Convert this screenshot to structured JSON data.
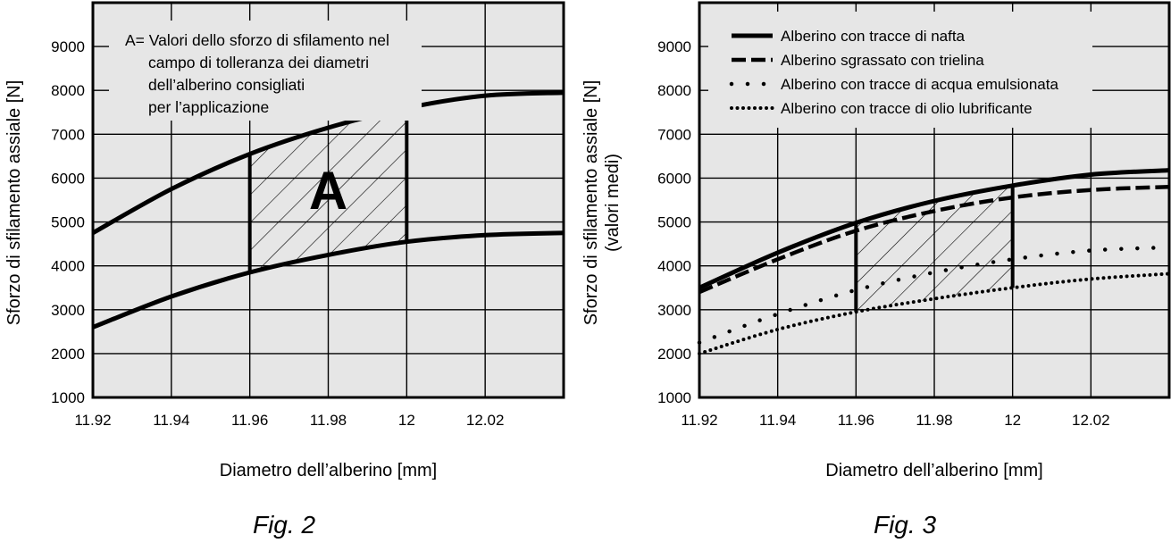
{
  "chart_data": [
    {
      "type": "line",
      "figure_label": "Fig. 2",
      "xlabel": "Diametro dell’alberino [mm]",
      "ylabel": "Sforzo di sfilamento assiale [N]",
      "xlim": [
        11.92,
        12.04
      ],
      "ylim": [
        1000,
        10000
      ],
      "x_ticks": [
        11.92,
        11.94,
        11.96,
        11.98,
        12,
        12.02
      ],
      "x_tick_labels": [
        "11.92",
        "11.94",
        "11.96",
        "11.98",
        "12",
        "12.02"
      ],
      "y_ticks": [
        1000,
        2000,
        3000,
        4000,
        5000,
        6000,
        7000,
        8000,
        9000
      ],
      "y_tick_labels": [
        "1000",
        "2000",
        "3000",
        "4000",
        "5000",
        "6000",
        "7000",
        "8000",
        "9000"
      ],
      "grid": true,
      "series": [
        {
          "key": "upper",
          "style": "solid",
          "x": [
            11.92,
            11.94,
            11.96,
            11.98,
            12.0,
            12.02,
            12.04
          ],
          "y": [
            4750,
            5750,
            6550,
            7150,
            7600,
            7880,
            7950
          ]
        },
        {
          "key": "lower",
          "style": "solid",
          "x": [
            11.92,
            11.94,
            11.96,
            11.98,
            12.0,
            12.02,
            12.04
          ],
          "y": [
            2600,
            3300,
            3850,
            4250,
            4550,
            4700,
            4750
          ]
        }
      ],
      "region": {
        "label": "A",
        "x_from": 11.96,
        "x_to": 12.0,
        "between": [
          "upper",
          "lower"
        ]
      },
      "annotation": [
        "A= Valori dello sforzo di sfilamento nel",
        "campo di tolleranza dei diametri",
        "dell’alberino consigliati",
        "per l’applicazione"
      ]
    },
    {
      "type": "line",
      "figure_label": "Fig. 3",
      "xlabel": "Diametro dell’alberino [mm]",
      "ylabel": "Sforzo di sfilamento assiale [N]",
      "ylabel2": "(valori medi)",
      "xlim": [
        11.92,
        12.04
      ],
      "ylim": [
        1000,
        10000
      ],
      "x_ticks": [
        11.92,
        11.94,
        11.96,
        11.98,
        12,
        12.02
      ],
      "x_tick_labels": [
        "11.92",
        "11.94",
        "11.96",
        "11.98",
        "12",
        "12.02"
      ],
      "y_ticks": [
        1000,
        2000,
        3000,
        4000,
        5000,
        6000,
        7000,
        8000,
        9000
      ],
      "y_tick_labels": [
        "1000",
        "2000",
        "3000",
        "4000",
        "5000",
        "6000",
        "7000",
        "8000",
        "9000"
      ],
      "grid": true,
      "legend_position": "top-left",
      "series": [
        {
          "key": "nafta",
          "name": "Alberino con tracce di nafta",
          "style": "solid",
          "x": [
            11.92,
            11.94,
            11.96,
            11.98,
            12.0,
            12.02,
            12.04
          ],
          "y": [
            3500,
            4300,
            4980,
            5480,
            5830,
            6080,
            6180
          ]
        },
        {
          "key": "trielina",
          "name": "Alberino sgrassato con trielina",
          "style": "dashed",
          "x": [
            11.92,
            11.94,
            11.96,
            11.98,
            12.0,
            12.02,
            12.04
          ],
          "y": [
            3400,
            4150,
            4800,
            5250,
            5560,
            5730,
            5800
          ]
        },
        {
          "key": "acqua",
          "name": "Alberino con tracce di acqua emulsionata",
          "style": "dotted-sparse",
          "x": [
            11.92,
            11.94,
            11.96,
            11.98,
            12.0,
            12.02,
            12.04
          ],
          "y": [
            2250,
            2900,
            3450,
            3850,
            4150,
            4350,
            4420
          ]
        },
        {
          "key": "olio",
          "name": "Alberino con tracce di olio lubrificante",
          "style": "dotted-dense",
          "x": [
            11.92,
            11.94,
            11.96,
            11.98,
            12.0,
            12.02,
            12.04
          ],
          "y": [
            2000,
            2550,
            2950,
            3250,
            3500,
            3700,
            3820
          ]
        }
      ],
      "region": {
        "x_from": 11.96,
        "x_to": 12.0,
        "between": [
          "nafta",
          "olio"
        ]
      }
    }
  ]
}
